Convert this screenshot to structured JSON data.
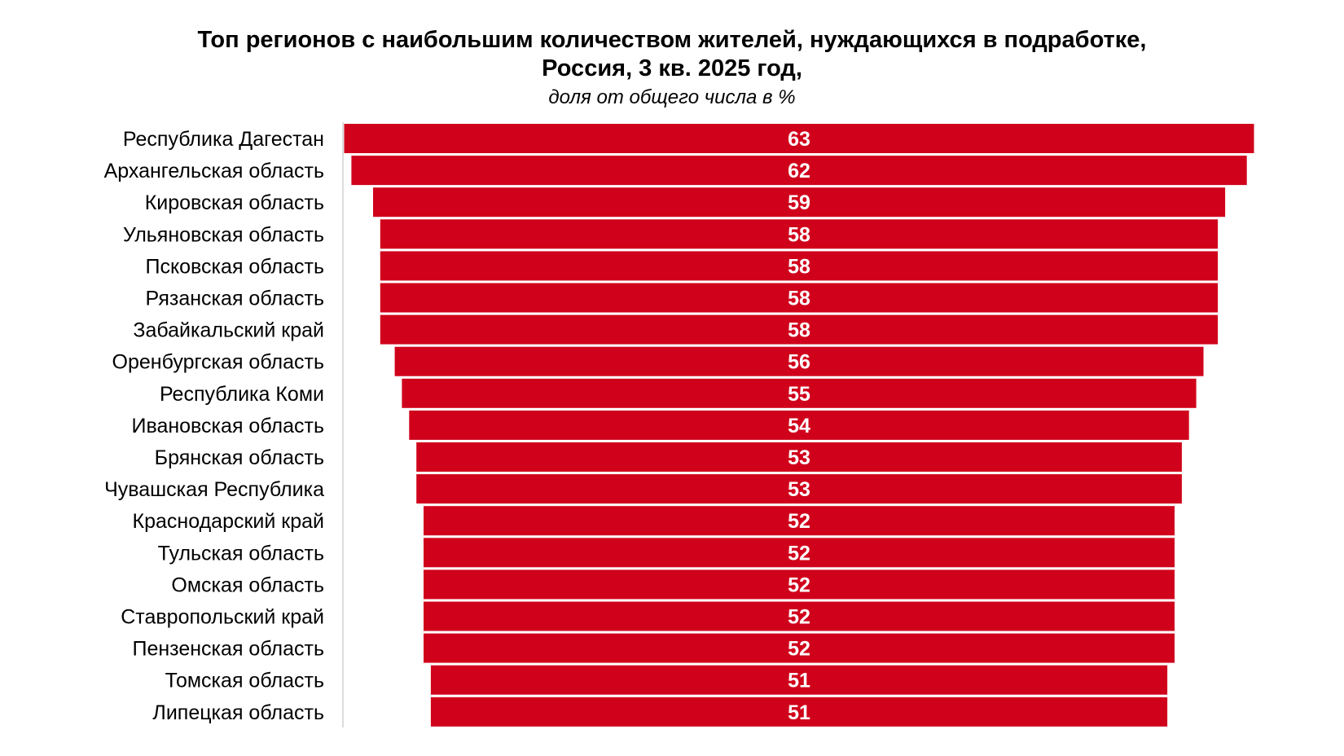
{
  "chart_data": {
    "type": "bar",
    "orientation": "horizontal",
    "title": "Топ регионов с наибольшим количеством жителей, нуждающихся в подработке, Россия, 3 кв. 2025 год,",
    "title_lines": [
      "Топ регионов с наибольшим количеством жителей, нуждающихся в подработке,",
      "Россия, 3 кв. 2025 год,"
    ],
    "subtitle": "доля от общего числа в %",
    "categories": [
      "Республика Дагестан",
      "Архангельская область",
      "Кировская область",
      "Ульяновская область",
      "Псковская область",
      "Рязанская область",
      "Забайкальский край",
      "Оренбургская область",
      "Республика Коми",
      "Ивановская область",
      "Брянская область",
      "Чувашская Республика",
      "Краснодарский край",
      "Тульская область",
      "Омская область",
      "Ставропольский край",
      "Пензенская область",
      "Томская область",
      "Липецкая область"
    ],
    "values": [
      63,
      62,
      59,
      58,
      58,
      58,
      58,
      56,
      55,
      54,
      53,
      53,
      52,
      52,
      52,
      52,
      52,
      51,
      51
    ],
    "bar_color": "#d0021b",
    "label_color": "#ffffff",
    "bar_alignment": "centered",
    "grid": false,
    "legend": "none"
  }
}
